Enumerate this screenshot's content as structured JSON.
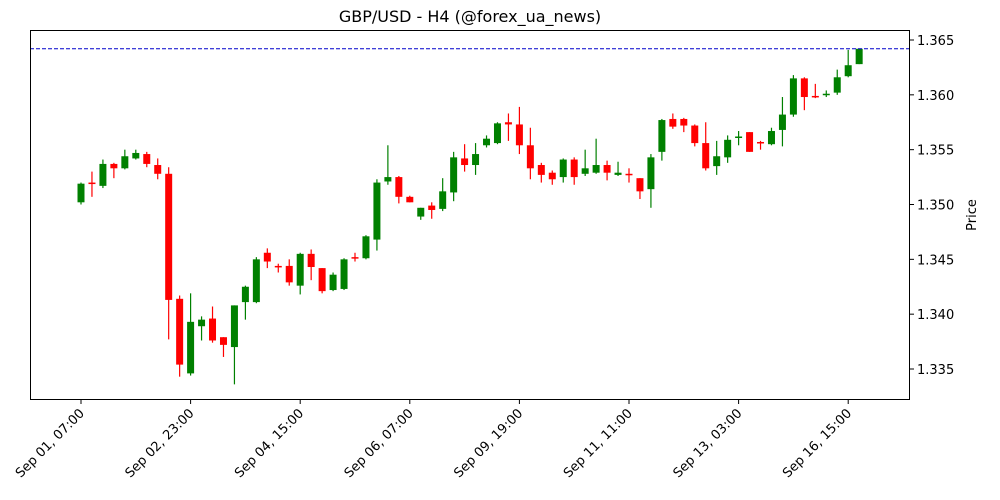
{
  "chart_data": {
    "type": "candlestick",
    "title": "GBP/USD - H4 (@forex_ua_news)",
    "xlabel": "",
    "ylabel": "Price",
    "ylim": [
      1.3321,
      1.3658
    ],
    "y_ticks": [
      1.335,
      1.34,
      1.345,
      1.35,
      1.355,
      1.36,
      1.365
    ],
    "y_tick_labels": [
      "1.335",
      "1.340",
      "1.345",
      "1.350",
      "1.355",
      "1.360",
      "1.365"
    ],
    "x_ticks": [
      {
        "index": 0,
        "label": "Sep 01, 07:00"
      },
      {
        "index": 10,
        "label": "Sep 02, 23:00"
      },
      {
        "index": 20,
        "label": "Sep 04, 15:00"
      },
      {
        "index": 30,
        "label": "Sep 06, 07:00"
      },
      {
        "index": 40,
        "label": "Sep 09, 19:00"
      },
      {
        "index": 50,
        "label": "Sep 11, 11:00"
      },
      {
        "index": 60,
        "label": "Sep 13, 03:00"
      },
      {
        "index": 70,
        "label": "Sep 16, 15:00"
      }
    ],
    "reference_line": {
      "value": 1.3642,
      "style": "dashed",
      "color": "#0000cc"
    },
    "colors": {
      "up": "#008000",
      "down": "#ff0000"
    },
    "grid": false,
    "y_axis_position": "right",
    "ohlc": [
      [
        1.3502,
        1.352,
        1.35,
        1.3519
      ],
      [
        1.352,
        1.353,
        1.3507,
        1.3519
      ],
      [
        1.3517,
        1.3541,
        1.3515,
        1.3537
      ],
      [
        1.3537,
        1.3538,
        1.3524,
        1.3533
      ],
      [
        1.3533,
        1.355,
        1.3532,
        1.3544
      ],
      [
        1.3542,
        1.355,
        1.3541,
        1.3547
      ],
      [
        1.3546,
        1.3548,
        1.3534,
        1.3537
      ],
      [
        1.3536,
        1.3542,
        1.3523,
        1.3528
      ],
      [
        1.3528,
        1.3534,
        1.3377,
        1.3413
      ],
      [
        1.3414,
        1.3417,
        1.3343,
        1.3354
      ],
      [
        1.3346,
        1.3419,
        1.3344,
        1.3393
      ],
      [
        1.3389,
        1.3398,
        1.3376,
        1.3395
      ],
      [
        1.3396,
        1.3407,
        1.3374,
        1.3376
      ],
      [
        1.3379,
        1.3379,
        1.3361,
        1.3372
      ],
      [
        1.337,
        1.3408,
        1.3336,
        1.3408
      ],
      [
        1.3411,
        1.3426,
        1.3395,
        1.3425
      ],
      [
        1.3411,
        1.3452,
        1.341,
        1.345
      ],
      [
        1.3456,
        1.346,
        1.3442,
        1.3448
      ],
      [
        1.3444,
        1.3446,
        1.3438,
        1.3443
      ],
      [
        1.3444,
        1.345,
        1.3426,
        1.3429
      ],
      [
        1.3426,
        1.3456,
        1.3418,
        1.3455
      ],
      [
        1.3455,
        1.3459,
        1.3431,
        1.3443
      ],
      [
        1.3442,
        1.3442,
        1.3419,
        1.3421
      ],
      [
        1.3422,
        1.3438,
        1.3421,
        1.3436
      ],
      [
        1.3423,
        1.3451,
        1.3422,
        1.345
      ],
      [
        1.3452,
        1.3456,
        1.3448,
        1.3451
      ],
      [
        1.3451,
        1.3472,
        1.345,
        1.3471
      ],
      [
        1.3468,
        1.3523,
        1.3458,
        1.352
      ],
      [
        1.3521,
        1.3554,
        1.3518,
        1.3525
      ],
      [
        1.3525,
        1.3526,
        1.3501,
        1.3507
      ],
      [
        1.3507,
        1.3508,
        1.3502,
        1.3502
      ],
      [
        1.3489,
        1.3497,
        1.3486,
        1.3497
      ],
      [
        1.3499,
        1.3502,
        1.3487,
        1.3495
      ],
      [
        1.3496,
        1.3524,
        1.3494,
        1.3512
      ],
      [
        1.3511,
        1.3548,
        1.3503,
        1.3543
      ],
      [
        1.3542,
        1.3555,
        1.353,
        1.3536
      ],
      [
        1.3536,
        1.3556,
        1.3527,
        1.3546
      ],
      [
        1.3554,
        1.3563,
        1.3552,
        1.356
      ],
      [
        1.3556,
        1.3575,
        1.3555,
        1.3574
      ],
      [
        1.3575,
        1.3583,
        1.3558,
        1.3573
      ],
      [
        1.3573,
        1.3589,
        1.3546,
        1.3554
      ],
      [
        1.3554,
        1.357,
        1.3523,
        1.3533
      ],
      [
        1.3536,
        1.3538,
        1.352,
        1.3527
      ],
      [
        1.3529,
        1.3531,
        1.3518,
        1.3523
      ],
      [
        1.3525,
        1.3542,
        1.352,
        1.3541
      ],
      [
        1.3541,
        1.3543,
        1.3518,
        1.3525
      ],
      [
        1.3528,
        1.355,
        1.3526,
        1.3533
      ],
      [
        1.3529,
        1.356,
        1.3528,
        1.3536
      ],
      [
        1.3536,
        1.354,
        1.3522,
        1.3529
      ],
      [
        1.3527,
        1.3539,
        1.3526,
        1.3529
      ],
      [
        1.3528,
        1.3533,
        1.352,
        1.3527
      ],
      [
        1.3524,
        1.3524,
        1.3505,
        1.3512
      ],
      [
        1.3514,
        1.3546,
        1.3497,
        1.3543
      ],
      [
        1.3548,
        1.3578,
        1.354,
        1.3577
      ],
      [
        1.3578,
        1.3583,
        1.3569,
        1.3571
      ],
      [
        1.3578,
        1.3579,
        1.3566,
        1.3572
      ],
      [
        1.3572,
        1.3573,
        1.3553,
        1.3556
      ],
      [
        1.3556,
        1.3575,
        1.3531,
        1.3533
      ],
      [
        1.3535,
        1.3558,
        1.3527,
        1.3544
      ],
      [
        1.3543,
        1.3563,
        1.3538,
        1.3559
      ],
      [
        1.3561,
        1.3567,
        1.3554,
        1.3562
      ],
      [
        1.3566,
        1.3566,
        1.3548,
        1.3548
      ],
      [
        1.3557,
        1.3558,
        1.355,
        1.3556
      ],
      [
        1.3555,
        1.357,
        1.3554,
        1.3567
      ],
      [
        1.3568,
        1.3598,
        1.3553,
        1.3582
      ],
      [
        1.3582,
        1.3618,
        1.358,
        1.3615
      ],
      [
        1.3615,
        1.3616,
        1.3586,
        1.3598
      ],
      [
        1.3599,
        1.361,
        1.3597,
        1.3598
      ],
      [
        1.36,
        1.3604,
        1.3598,
        1.3601
      ],
      [
        1.3602,
        1.3623,
        1.36,
        1.3616
      ],
      [
        1.3617,
        1.3641,
        1.3616,
        1.3627
      ],
      [
        1.3628,
        1.3642,
        1.3628,
        1.3642
      ]
    ]
  }
}
